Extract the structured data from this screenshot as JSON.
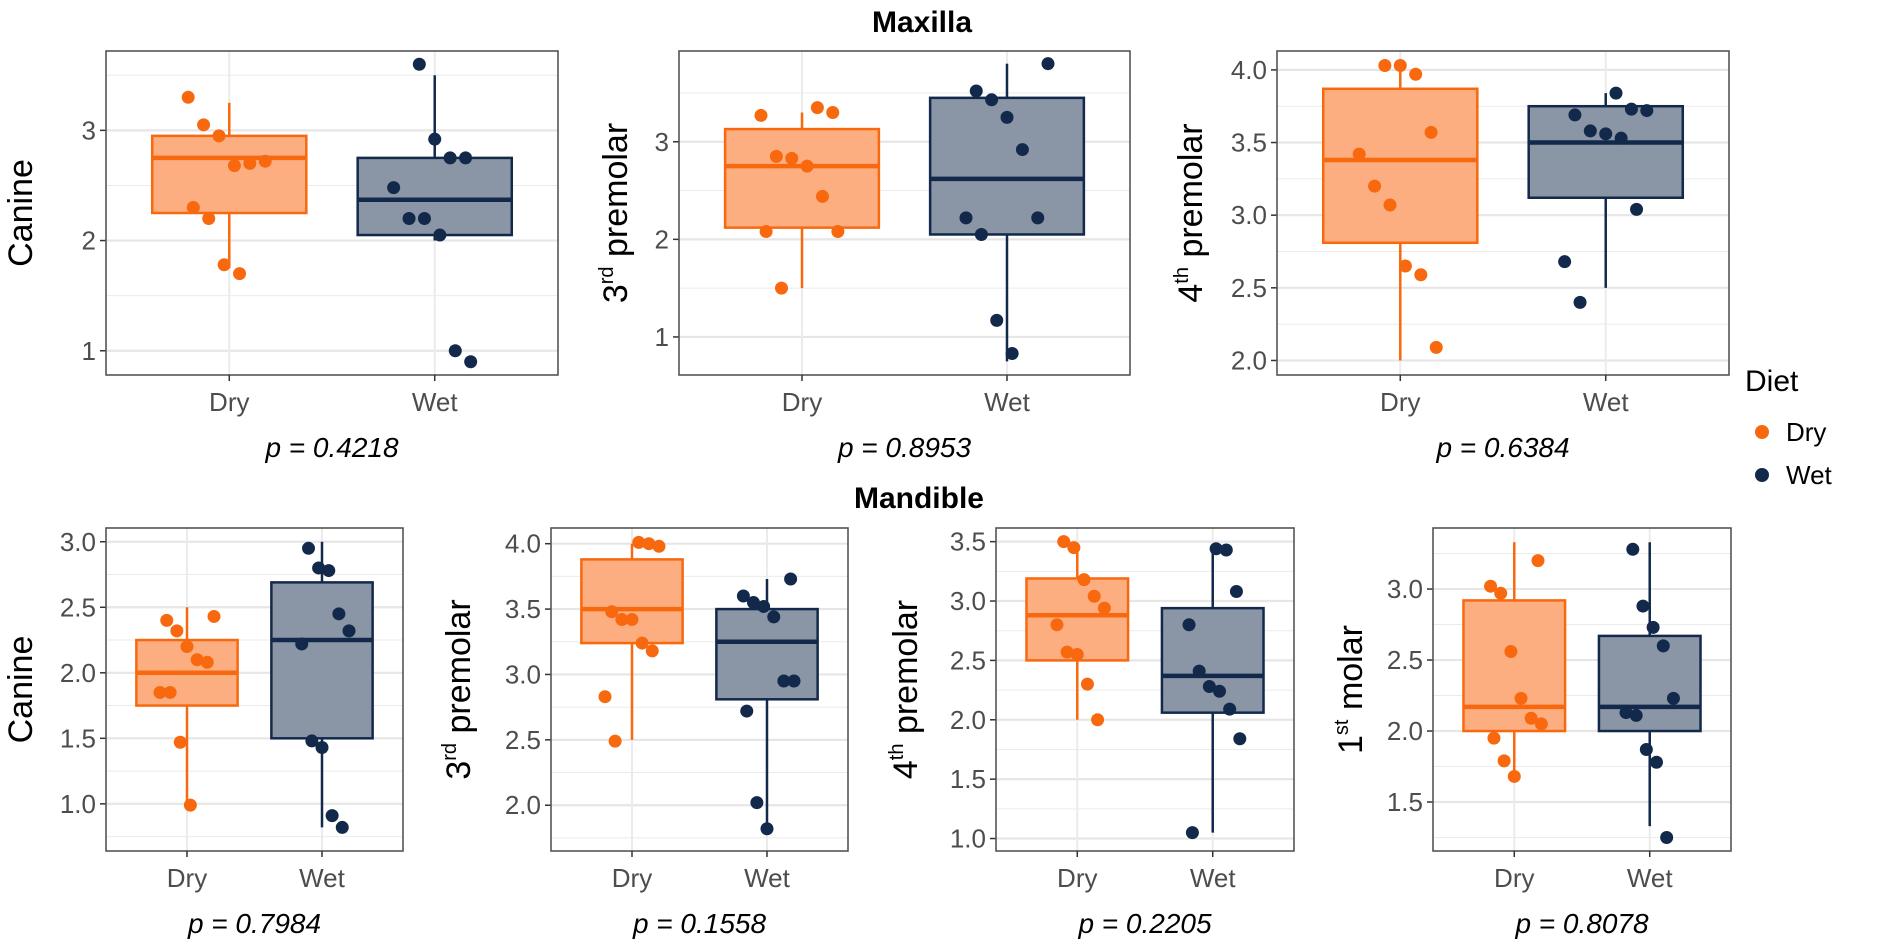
{
  "titles": {
    "top": "Maxilla",
    "bottom": "Mandible"
  },
  "legend": {
    "title": "Diet",
    "items": [
      {
        "label": "Dry",
        "color": "#F8690F"
      },
      {
        "label": "Wet",
        "color": "#13294B"
      }
    ]
  },
  "colors": {
    "Dry": {
      "line": "#F8690F",
      "fill": "#FDAE80"
    },
    "Wet": {
      "line": "#13294B",
      "fill": "#8A95A5"
    }
  },
  "chart_data": [
    {
      "type": "box",
      "section": "Maxilla",
      "ylabel": {
        "base": "Canine",
        "sup": "",
        "rest": ""
      },
      "categories": [
        "Dry",
        "Wet"
      ],
      "ylim": [
        0.78,
        3.72
      ],
      "yticks": [
        1,
        2,
        3
      ],
      "ytick_labels": [
        "1",
        "2",
        "3"
      ],
      "p_label": "p = 0.4218",
      "groups": [
        {
          "name": "Dry",
          "box": {
            "lower_whisker": 1.75,
            "q1": 2.25,
            "median": 2.75,
            "q3": 2.95,
            "upper_whisker": 3.25
          },
          "points": [
            3.3,
            3.05,
            2.95,
            2.68,
            2.7,
            2.72,
            2.3,
            2.2,
            1.78,
            1.7
          ]
        },
        {
          "name": "Wet",
          "box": {
            "lower_whisker": 2.0,
            "q1": 2.05,
            "median": 2.37,
            "q3": 2.75,
            "upper_whisker": 3.5
          },
          "points": [
            3.6,
            2.92,
            2.75,
            2.75,
            2.48,
            2.2,
            2.2,
            2.05,
            1.0,
            0.9
          ]
        }
      ]
    },
    {
      "type": "box",
      "section": "Maxilla",
      "ylabel": {
        "base": "3",
        "sup": "rd",
        "rest": " premolar"
      },
      "categories": [
        "Dry",
        "Wet"
      ],
      "ylim": [
        0.61,
        3.93
      ],
      "yticks": [
        1,
        2,
        3
      ],
      "ytick_labels": [
        "1",
        "2",
        "3"
      ],
      "p_label": "p = 0.8953",
      "groups": [
        {
          "name": "Dry",
          "box": {
            "lower_whisker": 1.5,
            "q1": 2.12,
            "median": 2.75,
            "q3": 3.13,
            "upper_whisker": 3.3
          },
          "points": [
            3.35,
            3.3,
            3.27,
            2.85,
            2.83,
            2.75,
            2.44,
            2.08,
            2.08,
            1.5
          ]
        },
        {
          "name": "Wet",
          "box": {
            "lower_whisker": 0.75,
            "q1": 2.05,
            "median": 2.62,
            "q3": 3.45,
            "upper_whisker": 3.8
          },
          "points": [
            3.8,
            3.52,
            3.43,
            3.25,
            2.92,
            2.22,
            2.22,
            2.05,
            1.17,
            0.83
          ]
        }
      ]
    },
    {
      "type": "box",
      "section": "Maxilla",
      "ylabel": {
        "base": "4",
        "sup": "th",
        "rest": " premolar"
      },
      "categories": [
        "Dry",
        "Wet"
      ],
      "ylim": [
        1.9,
        4.13
      ],
      "yticks": [
        2.0,
        2.5,
        3.0,
        3.5,
        4.0
      ],
      "ytick_labels": [
        "2.0",
        "2.5",
        "3.0",
        "3.5",
        "4.0"
      ],
      "p_label": "p = 0.6384",
      "groups": [
        {
          "name": "Dry",
          "box": {
            "lower_whisker": 2.0,
            "q1": 2.81,
            "median": 3.38,
            "q3": 3.87,
            "upper_whisker": 4.0
          },
          "points": [
            4.03,
            4.03,
            3.97,
            3.57,
            3.42,
            3.2,
            3.07,
            2.65,
            2.59,
            2.09
          ]
        },
        {
          "name": "Wet",
          "box": {
            "lower_whisker": 2.5,
            "q1": 3.12,
            "median": 3.5,
            "q3": 3.75,
            "upper_whisker": 3.84
          },
          "points": [
            3.84,
            3.73,
            3.72,
            3.69,
            3.58,
            3.56,
            3.53,
            3.04,
            2.68,
            2.4
          ]
        }
      ]
    },
    {
      "type": "box",
      "section": "Mandible",
      "ylabel": {
        "base": "Canine",
        "sup": "",
        "rest": ""
      },
      "categories": [
        "Dry",
        "Wet"
      ],
      "ylim": [
        0.64,
        3.105
      ],
      "yticks": [
        1.0,
        1.5,
        2.0,
        2.5,
        3.0
      ],
      "ytick_labels": [
        "1.0",
        "1.5",
        "2.0",
        "2.5",
        "3.0"
      ],
      "p_label": "p = 0.7984",
      "groups": [
        {
          "name": "Dry",
          "box": {
            "lower_whisker": 1.0,
            "q1": 1.75,
            "median": 2.0,
            "q3": 2.25,
            "upper_whisker": 2.5
          },
          "points": [
            2.43,
            2.4,
            2.32,
            2.2,
            2.1,
            2.08,
            1.85,
            1.85,
            1.47,
            0.99
          ]
        },
        {
          "name": "Wet",
          "box": {
            "lower_whisker": 0.82,
            "q1": 1.5,
            "median": 2.25,
            "q3": 2.69,
            "upper_whisker": 3.0
          },
          "points": [
            2.95,
            2.8,
            2.78,
            2.45,
            2.32,
            2.22,
            1.48,
            1.43,
            0.91,
            0.82
          ]
        }
      ]
    },
    {
      "type": "box",
      "section": "Mandible",
      "ylabel": {
        "base": "3",
        "sup": "rd",
        "rest": " premolar"
      },
      "categories": [
        "Dry",
        "Wet"
      ],
      "ylim": [
        1.65,
        4.12
      ],
      "yticks": [
        2.0,
        2.5,
        3.0,
        3.5,
        4.0
      ],
      "ytick_labels": [
        "2.0",
        "2.5",
        "3.0",
        "3.5",
        "4.0"
      ],
      "p_label": "p = 0.1558",
      "groups": [
        {
          "name": "Dry",
          "box": {
            "lower_whisker": 2.5,
            "q1": 3.24,
            "median": 3.5,
            "q3": 3.88,
            "upper_whisker": 4.0
          },
          "points": [
            4.01,
            4.0,
            3.98,
            3.48,
            3.42,
            3.42,
            3.24,
            3.18,
            2.83,
            2.49
          ]
        },
        {
          "name": "Wet",
          "box": {
            "lower_whisker": 1.83,
            "q1": 2.81,
            "median": 3.25,
            "q3": 3.5,
            "upper_whisker": 3.73
          },
          "points": [
            3.73,
            3.6,
            3.55,
            3.52,
            3.44,
            2.95,
            2.95,
            2.72,
            2.02,
            1.82
          ]
        }
      ]
    },
    {
      "type": "box",
      "section": "Mandible",
      "ylabel": {
        "base": "4",
        "sup": "th",
        "rest": " premolar"
      },
      "categories": [
        "Dry",
        "Wet"
      ],
      "ylim": [
        0.895,
        3.615
      ],
      "yticks": [
        1.0,
        1.5,
        2.0,
        2.5,
        3.0,
        3.5
      ],
      "ytick_labels": [
        "1.0",
        "1.5",
        "2.0",
        "2.5",
        "3.0",
        "3.5"
      ],
      "p_label": "p = 0.2205",
      "groups": [
        {
          "name": "Dry",
          "box": {
            "lower_whisker": 2.0,
            "q1": 2.5,
            "median": 2.88,
            "q3": 3.19,
            "upper_whisker": 3.46
          },
          "points": [
            3.5,
            3.45,
            3.18,
            3.04,
            2.94,
            2.8,
            2.57,
            2.55,
            2.3,
            2.0
          ]
        },
        {
          "name": "Wet",
          "box": {
            "lower_whisker": 1.05,
            "q1": 2.06,
            "median": 2.37,
            "q3": 2.94,
            "upper_whisker": 3.44
          },
          "points": [
            3.44,
            3.43,
            3.08,
            2.8,
            2.41,
            2.28,
            2.24,
            2.09,
            1.84,
            1.05
          ]
        }
      ]
    },
    {
      "type": "box",
      "section": "Mandible",
      "ylabel": {
        "base": "1",
        "sup": "st",
        "rest": " molar"
      },
      "categories": [
        "Dry",
        "Wet"
      ],
      "ylim": [
        1.155,
        3.43
      ],
      "yticks": [
        1.5,
        2.0,
        2.5,
        3.0
      ],
      "ytick_labels": [
        "1.5",
        "2.0",
        "2.5",
        "3.0"
      ],
      "p_label": "p = 0.8078",
      "groups": [
        {
          "name": "Dry",
          "box": {
            "lower_whisker": 1.67,
            "q1": 2.0,
            "median": 2.17,
            "q3": 2.92,
            "upper_whisker": 3.33
          },
          "points": [
            3.2,
            3.02,
            2.97,
            2.56,
            2.23,
            2.09,
            2.05,
            1.95,
            1.79,
            1.68
          ]
        },
        {
          "name": "Wet",
          "box": {
            "lower_whisker": 1.33,
            "q1": 2.0,
            "median": 2.17,
            "q3": 2.67,
            "upper_whisker": 3.33
          },
          "points": [
            3.28,
            2.88,
            2.73,
            2.6,
            2.23,
            2.13,
            2.11,
            1.87,
            1.78,
            1.25
          ]
        }
      ]
    }
  ]
}
